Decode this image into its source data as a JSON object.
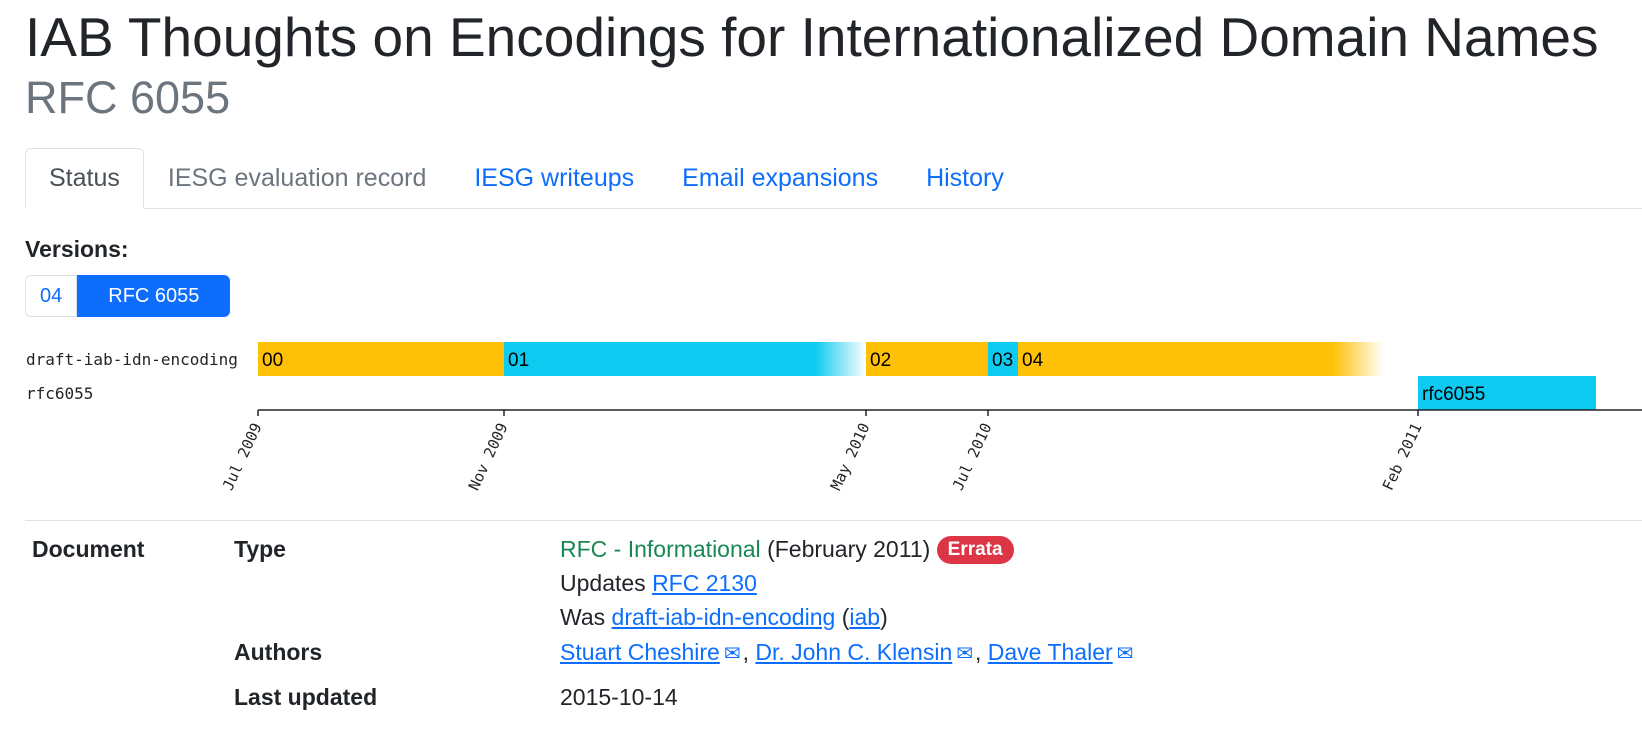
{
  "header": {
    "title": "IAB Thoughts on Encodings for Internationalized Domain Names",
    "subtitle": "RFC 6055"
  },
  "tabs": [
    {
      "label": "Status",
      "active": true
    },
    {
      "label": "IESG evaluation record",
      "disabled": true
    },
    {
      "label": "IESG writeups"
    },
    {
      "label": "Email expansions"
    },
    {
      "label": "History"
    }
  ],
  "versions": {
    "label": "Versions:",
    "items": [
      {
        "label": "04",
        "active": false
      },
      {
        "label": "RFC 6055",
        "active": true
      }
    ]
  },
  "timeline": {
    "rows": [
      {
        "name": "draft-iab-idn-encoding",
        "segments": [
          {
            "label": "00",
            "start": "2009-07-01",
            "end": "2009-11-01",
            "color": "#ffc107"
          },
          {
            "label": "01",
            "start": "2009-11-01",
            "end": "2010-05-01",
            "color": "#0dcaf0",
            "fade": true
          },
          {
            "label": "02",
            "start": "2010-05-01",
            "end": "2010-07-01",
            "color": "#ffc107"
          },
          {
            "label": "03",
            "start": "2010-07-01",
            "end": "2010-07-16",
            "color": "#0dcaf0"
          },
          {
            "label": "04",
            "start": "2010-07-16",
            "end": "2011-01-15",
            "color": "#ffc107",
            "fade": true
          }
        ]
      },
      {
        "name": "rfc6055",
        "segments": [
          {
            "label": "rfc6055",
            "start": "2011-02-01",
            "end": "2011-05-01",
            "color": "#0dcaf0"
          }
        ]
      }
    ],
    "ticks": [
      {
        "label": "Jul 2009",
        "date": "2009-07-01"
      },
      {
        "label": "Nov 2009",
        "date": "2009-11-01"
      },
      {
        "label": "May 2010",
        "date": "2010-05-01"
      },
      {
        "label": "Jul 2010",
        "date": "2010-07-01"
      },
      {
        "label": "Feb 2011",
        "date": "2011-02-01"
      }
    ]
  },
  "document": {
    "section_label": "Document",
    "type_label": "Type",
    "type_status": "RFC - Informational",
    "type_date": "(February 2011)",
    "errata_badge": "Errata",
    "updates_prefix": "Updates",
    "updates_link": "RFC 2130",
    "was_prefix": "Was",
    "was_link": "draft-iab-idn-encoding",
    "was_group_open": "(",
    "was_group": "iab",
    "was_group_close": ")",
    "authors_label": "Authors",
    "authors": [
      "Stuart Cheshire",
      "Dr. John C. Klensin",
      "Dave Thaler"
    ],
    "author_separator": ",",
    "email_icon": "envelope-icon",
    "last_updated_label": "Last updated",
    "last_updated": "2015-10-14"
  }
}
